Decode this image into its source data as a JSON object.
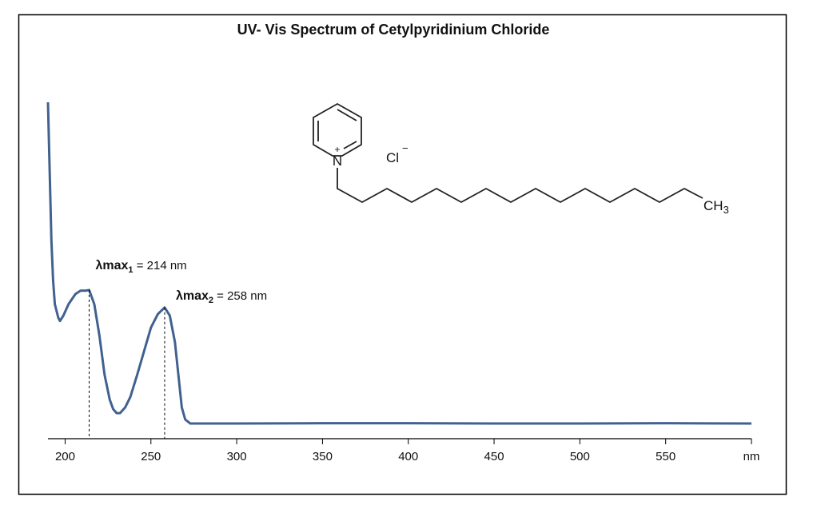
{
  "chart_data": {
    "type": "line",
    "title": "UV- Vis Spectrum of Cetylpyridinium Chloride",
    "x": [
      190,
      192,
      193,
      194,
      196,
      197,
      199,
      202,
      206,
      209,
      212,
      214,
      217,
      220,
      223,
      226,
      228,
      230,
      232,
      235,
      238,
      242,
      246,
      250,
      254,
      258,
      261,
      264,
      266,
      268,
      270,
      273,
      300,
      350,
      400,
      450,
      500,
      550,
      600
    ],
    "series": [
      {
        "color": "#41628f",
        "values": [
          1.0,
          0.59,
          0.47,
          0.4,
          0.36,
          0.35,
          0.366,
          0.4,
          0.43,
          0.44,
          0.44,
          0.442,
          0.4,
          0.306,
          0.19,
          0.116,
          0.088,
          0.076,
          0.076,
          0.093,
          0.124,
          0.19,
          0.26,
          0.33,
          0.37,
          0.39,
          0.366,
          0.287,
          0.19,
          0.093,
          0.057,
          0.045,
          0.045,
          0.046,
          0.046,
          0.045,
          0.045,
          0.046,
          0.045
        ]
      }
    ],
    "xlim": [
      190,
      600
    ],
    "ylim": [
      0,
      1
    ],
    "xticks": [
      200,
      250,
      300,
      350,
      400,
      450,
      500,
      550,
      {
        "value": 600,
        "label": "nm"
      }
    ],
    "annotations": [
      {
        "symbol": "λmax",
        "subscript": "1",
        "text": " = 214 nm",
        "x": 214,
        "y": 0.442
      },
      {
        "symbol": "λmax",
        "subscript": "2",
        "text": " = 258 nm",
        "x": 258,
        "y": 0.39
      }
    ],
    "structure": {
      "nitrogen": "N",
      "charge": "+",
      "counterion": "Cl",
      "counterion_charge": "−",
      "terminal": "CH",
      "terminal_subscript": "3"
    }
  }
}
